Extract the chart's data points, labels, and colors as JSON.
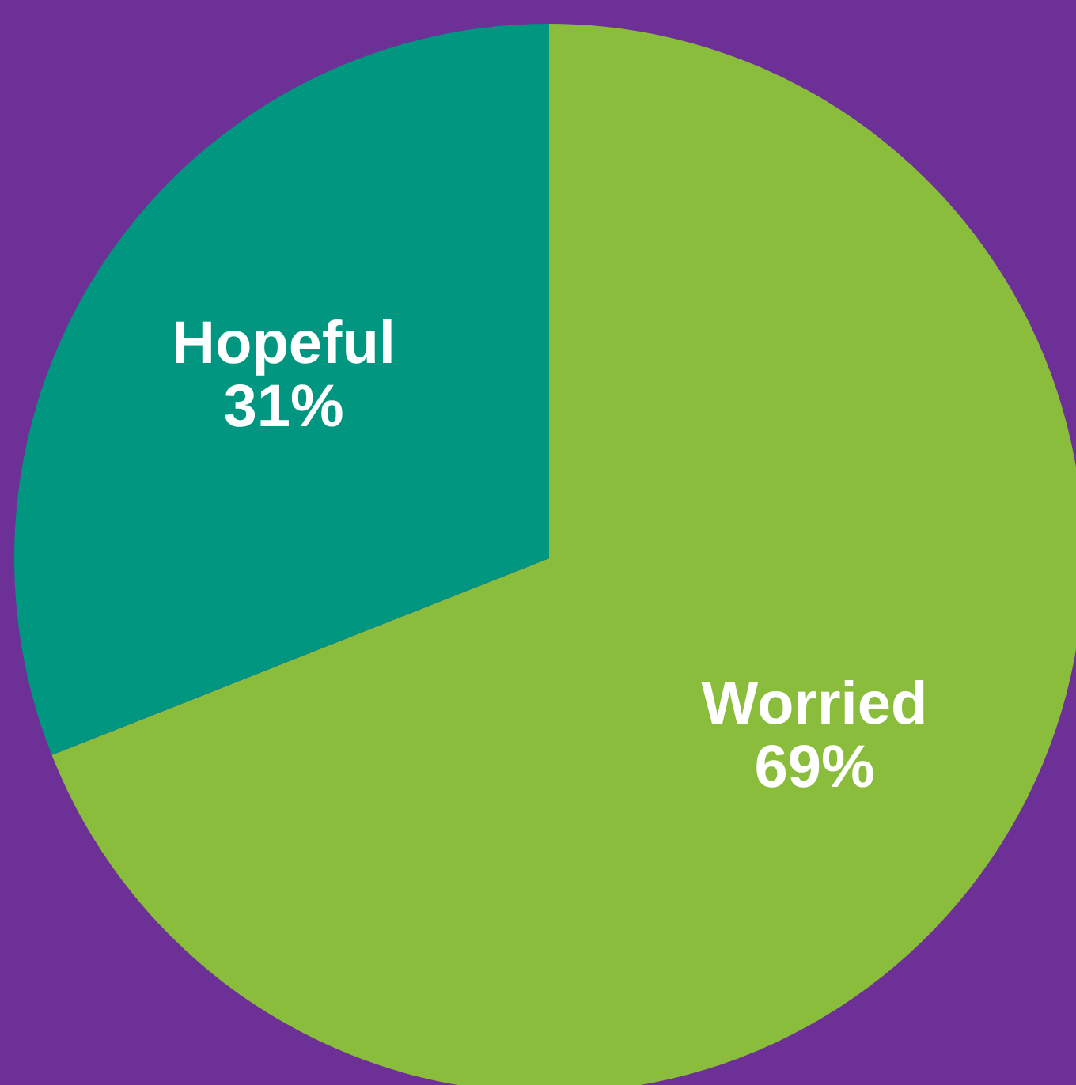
{
  "chart_data": {
    "type": "pie",
    "categories": [
      "Worried",
      "Hopeful"
    ],
    "values": [
      69,
      31
    ],
    "colors": [
      "#8bbd3c",
      "#009680"
    ],
    "value_labels": [
      "69%",
      "31%"
    ],
    "legend": false
  }
}
